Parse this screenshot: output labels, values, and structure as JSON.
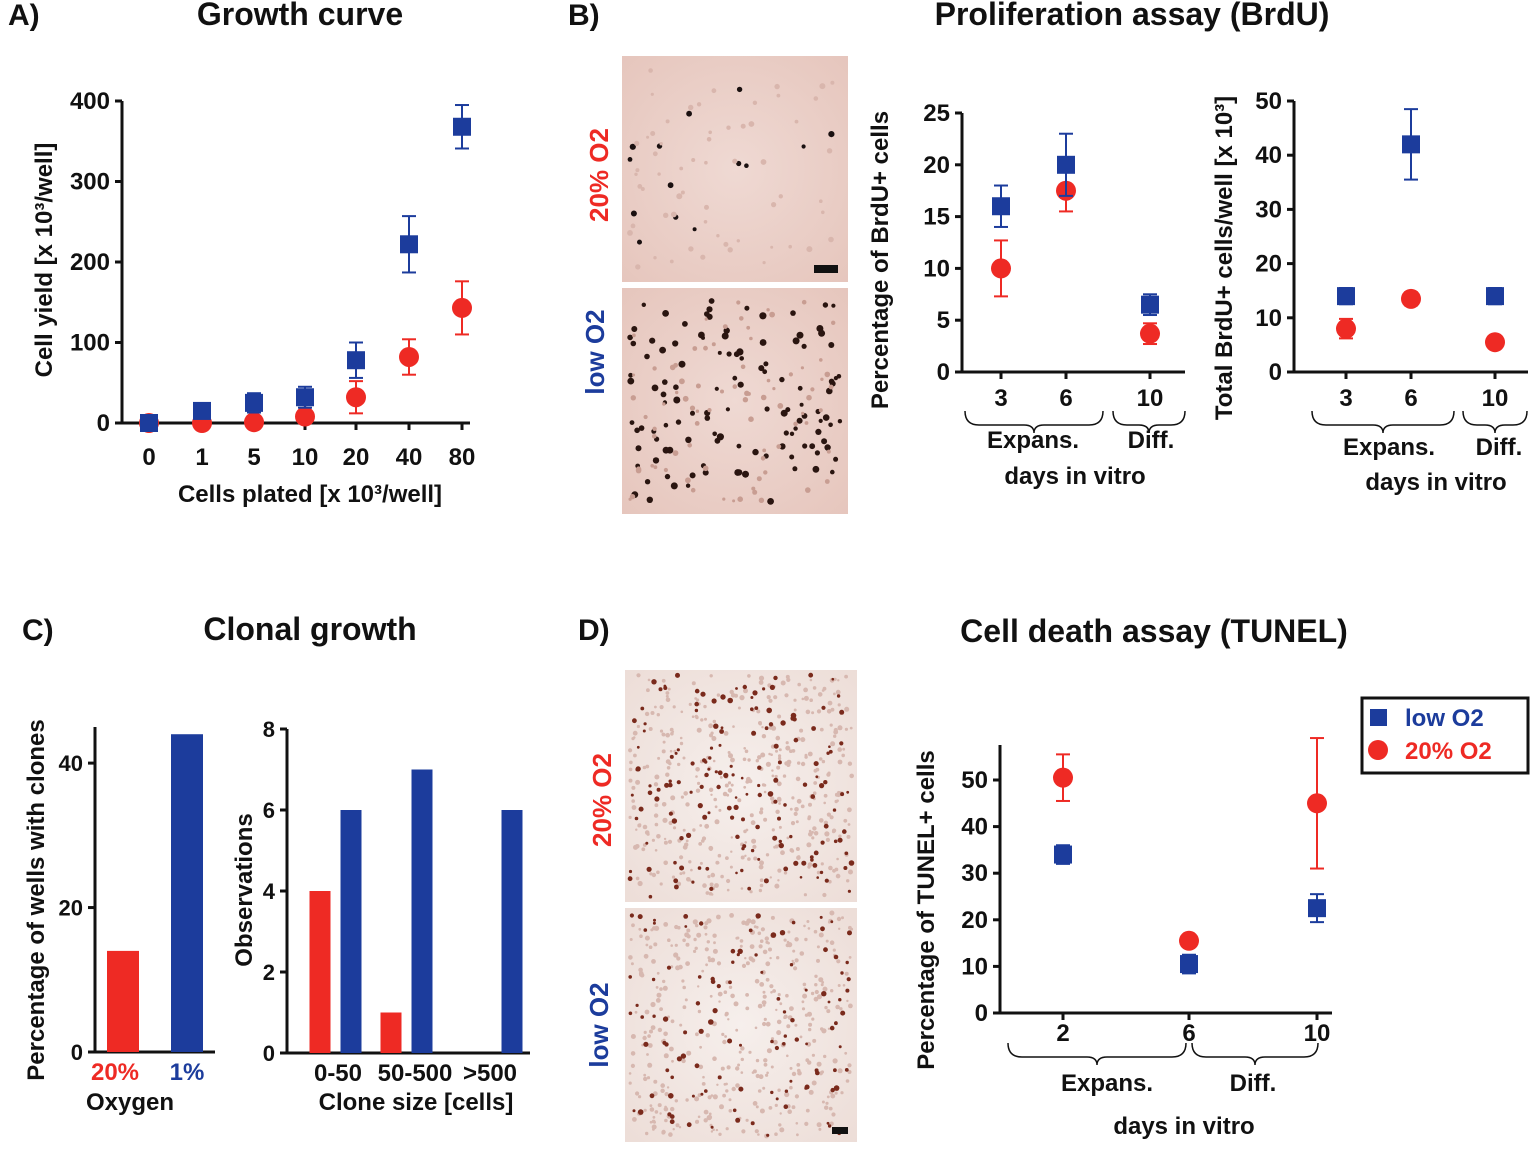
{
  "colors": {
    "blue": "#1c3c9c",
    "red": "#ee2a24",
    "black": "#111111"
  },
  "panels": {
    "A": {
      "letter": "A)",
      "title": "Growth curve"
    },
    "B": {
      "letter": "B)",
      "title": "Proliferation assay (BrdU)",
      "micro_top_label": "20% O2",
      "micro_bottom_label": "low O2"
    },
    "C": {
      "letter": "C)",
      "title": "Clonal growth"
    },
    "D": {
      "letter": "D)",
      "title": "Cell death assay (TUNEL)",
      "micro_top_label": "20% O2",
      "micro_bottom_label": "low O2"
    }
  },
  "legend": {
    "items": [
      {
        "label": "low O2",
        "color": "#1c3c9c",
        "marker": "square"
      },
      {
        "label": "20% O2",
        "color": "#ee2a24",
        "marker": "circle"
      }
    ]
  },
  "chart_data": [
    {
      "id": "A",
      "type": "scatter",
      "title": "Growth curve",
      "xlabel": "Cells plated [x 10³/well]",
      "ylabel": "Cell yield [x 10³/well]",
      "categories": [
        "0",
        "1",
        "5",
        "10",
        "20",
        "40",
        "80"
      ],
      "ylim": [
        0,
        400
      ],
      "yticks": [
        0,
        100,
        200,
        300,
        400
      ],
      "series": [
        {
          "name": "low O2",
          "marker": "square",
          "color": "#1c3c9c",
          "values": [
            0,
            15,
            25,
            32,
            78,
            222,
            368
          ],
          "err": [
            2,
            5,
            12,
            13,
            22,
            35,
            27
          ]
        },
        {
          "name": "20% O2",
          "marker": "circle",
          "color": "#ee2a24",
          "values": [
            0,
            0,
            1,
            8,
            32,
            82,
            143
          ],
          "err": [
            2,
            2,
            3,
            6,
            20,
            22,
            33
          ]
        }
      ]
    },
    {
      "id": "B1",
      "type": "scatter",
      "xlabel": "days in vitro",
      "ylabel": "Percentage of BrdU+ cells",
      "categories": [
        "3",
        "6",
        "10"
      ],
      "groups": [
        "Expans.",
        "Diff."
      ],
      "ylim": [
        0,
        25
      ],
      "yticks": [
        0,
        5,
        10,
        15,
        20,
        25
      ],
      "series": [
        {
          "name": "low O2",
          "marker": "square",
          "color": "#1c3c9c",
          "values": [
            16,
            20,
            6.5
          ],
          "err": [
            2,
            3,
            1
          ]
        },
        {
          "name": "20% O2",
          "marker": "circle",
          "color": "#ee2a24",
          "values": [
            10,
            17.5,
            3.7
          ],
          "err": [
            2.7,
            2,
            1
          ]
        }
      ]
    },
    {
      "id": "B2",
      "type": "scatter",
      "xlabel": "days in vitro",
      "ylabel": "Total BrdU+ cells/well [x 10³]",
      "categories": [
        "3",
        "6",
        "10"
      ],
      "groups": [
        "Expans.",
        "Diff."
      ],
      "ylim": [
        0,
        50
      ],
      "yticks": [
        0,
        10,
        20,
        30,
        40,
        50
      ],
      "series": [
        {
          "name": "low O2",
          "marker": "square",
          "color": "#1c3c9c",
          "values": [
            14,
            42,
            14
          ],
          "err": [
            1.5,
            6.5,
            1.5
          ]
        },
        {
          "name": "20% O2",
          "marker": "circle",
          "color": "#ee2a24",
          "values": [
            8,
            13.5,
            5.5
          ],
          "err": [
            1.8,
            1.2,
            0.8
          ]
        }
      ]
    },
    {
      "id": "C1",
      "type": "bar",
      "xlabel": "Oxygen",
      "ylabel": "Percentage of wells with clones",
      "categories": [
        "20%",
        "1%"
      ],
      "values": [
        14,
        44
      ],
      "colors": [
        "#ee2a24",
        "#1c3c9c"
      ],
      "ylim": [
        0,
        45
      ],
      "yticks": [
        0,
        20,
        40
      ]
    },
    {
      "id": "C2",
      "type": "bar",
      "xlabel": "Clone size [cells]",
      "ylabel": "Observations",
      "categories": [
        "0-50",
        "50-500",
        ">500"
      ],
      "ylim": [
        0,
        8
      ],
      "yticks": [
        0,
        2,
        4,
        6,
        8
      ],
      "series": [
        {
          "name": "20%",
          "color": "#ee2a24",
          "values": [
            4,
            1,
            0
          ]
        },
        {
          "name": "1%",
          "color": "#1c3c9c",
          "values": [
            6,
            7,
            6
          ]
        }
      ]
    },
    {
      "id": "D",
      "type": "scatter",
      "xlabel": "days in vitro",
      "ylabel": "Percentage of TUNEL+ cells",
      "categories": [
        "2",
        "6",
        "10"
      ],
      "groups": [
        "Expans.",
        "Diff."
      ],
      "ylim": [
        0,
        50
      ],
      "yticks": [
        0,
        10,
        20,
        30,
        40,
        50
      ],
      "series": [
        {
          "name": "low O2",
          "marker": "square",
          "color": "#1c3c9c",
          "values": [
            34,
            10.5,
            22.5
          ],
          "err": [
            2,
            2,
            3
          ]
        },
        {
          "name": "20% O2",
          "marker": "circle",
          "color": "#ee2a24",
          "values": [
            50.5,
            15.5,
            45
          ],
          "err": [
            5,
            1,
            14
          ]
        }
      ]
    }
  ]
}
